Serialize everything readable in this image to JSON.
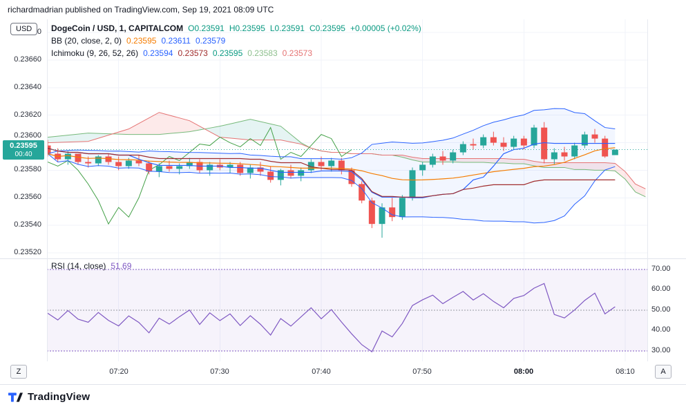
{
  "header": {
    "attribution": "richardmadrian published on TradingView.com, Sep 19, 2021 08:09 UTC"
  },
  "chart_controls": {
    "currency_button": "USD",
    "zoom_hint_left": "Z",
    "zoom_hint_right": "A"
  },
  "legend": {
    "symbol_row": {
      "title": "DogeCoin / USD, 1, CAPITALCOM",
      "open": "O0.23591",
      "high": "H0.23595",
      "low": "L0.23591",
      "close": "C0.23595",
      "change": "+0.00005 (+0.02%)"
    },
    "bb_row": {
      "title": "BB (20, close, 2, 0)",
      "values": [
        "0.23595",
        "0.23611",
        "0.23579"
      ]
    },
    "ichimoku_row": {
      "title": "Ichimoku (9, 26, 52, 26)",
      "values": [
        "0.23594",
        "0.23573",
        "0.23595",
        "0.23583",
        "0.23573"
      ]
    },
    "rsi_row": {
      "title": "RSI (14, close)",
      "value": "51.69"
    }
  },
  "price_axis": {
    "labels": [
      "0.23680",
      "0.23660",
      "0.23640",
      "0.23620",
      "0.23600",
      "0.23580",
      "0.23560",
      "0.23540",
      "0.23520"
    ],
    "last_price_badge": {
      "price": "0.23595",
      "countdown": "00:40",
      "color": "#26a69a"
    }
  },
  "rsi_axis": {
    "labels": [
      "70.00",
      "60.00",
      "50.00",
      "40.00",
      "30.00"
    ]
  },
  "time_axis": {
    "labels": [
      "07:20",
      "07:30",
      "07:40",
      "07:50",
      "08:00",
      "08:10"
    ]
  },
  "footer": {
    "brand": "TradingView",
    "logo_icon": "tradingview-logo"
  },
  "chart_data": {
    "type": "candlestick",
    "symbol": "DogeCoin / USD",
    "exchange": "CAPITALCOM",
    "interval": "1 minute",
    "start_time": "07:13",
    "end_time": "08:09",
    "last_price": 0.23595,
    "grid_prices": [
      0.2368,
      0.2366,
      0.2364,
      0.2362,
      0.236,
      0.2358,
      0.2356,
      0.2354,
      0.2352
    ],
    "tick_indices": [
      7,
      17,
      27,
      37,
      47,
      57
    ],
    "ohlc": [
      [
        0.23598,
        0.23602,
        0.2359,
        0.23592
      ],
      [
        0.23592,
        0.23596,
        0.23586,
        0.23588
      ],
      [
        0.23588,
        0.23594,
        0.23584,
        0.23592
      ],
      [
        0.23592,
        0.23592,
        0.23584,
        0.23586
      ],
      [
        0.23586,
        0.2359,
        0.23582,
        0.23585
      ],
      [
        0.23585,
        0.23591,
        0.23583,
        0.2359
      ],
      [
        0.2359,
        0.23592,
        0.23584,
        0.23586
      ],
      [
        0.23586,
        0.2359,
        0.2358,
        0.23583
      ],
      [
        0.23583,
        0.23589,
        0.23581,
        0.23587
      ],
      [
        0.23587,
        0.23591,
        0.23583,
        0.23585
      ],
      [
        0.23585,
        0.23587,
        0.23577,
        0.23579
      ],
      [
        0.23579,
        0.23585,
        0.23575,
        0.23583
      ],
      [
        0.23583,
        0.23587,
        0.23579,
        0.23581
      ],
      [
        0.23581,
        0.23585,
        0.23577,
        0.23583
      ],
      [
        0.23583,
        0.23589,
        0.23581,
        0.23586
      ],
      [
        0.23586,
        0.23588,
        0.23578,
        0.2358
      ],
      [
        0.2358,
        0.23586,
        0.23576,
        0.23584
      ],
      [
        0.23584,
        0.23588,
        0.2358,
        0.23582
      ],
      [
        0.23582,
        0.23586,
        0.23578,
        0.23584
      ],
      [
        0.23584,
        0.23586,
        0.23576,
        0.23578
      ],
      [
        0.23578,
        0.23584,
        0.23574,
        0.23582
      ],
      [
        0.23582,
        0.23586,
        0.23576,
        0.23579
      ],
      [
        0.23579,
        0.23583,
        0.23571,
        0.23573
      ],
      [
        0.23573,
        0.23581,
        0.23569,
        0.2358
      ],
      [
        0.2358,
        0.23584,
        0.23574,
        0.23576
      ],
      [
        0.23576,
        0.23582,
        0.23572,
        0.2358
      ],
      [
        0.2358,
        0.23588,
        0.23578,
        0.23586
      ],
      [
        0.23586,
        0.2359,
        0.2358,
        0.23583
      ],
      [
        0.23583,
        0.23589,
        0.23579,
        0.23587
      ],
      [
        0.23587,
        0.23589,
        0.23577,
        0.2358
      ],
      [
        0.2358,
        0.23582,
        0.23568,
        0.2357
      ],
      [
        0.2357,
        0.23572,
        0.23556,
        0.23558
      ],
      [
        0.23558,
        0.2356,
        0.23538,
        0.23541
      ],
      [
        0.23541,
        0.23556,
        0.23531,
        0.23553
      ],
      [
        0.23553,
        0.2356,
        0.23543,
        0.23546
      ],
      [
        0.23546,
        0.23562,
        0.23544,
        0.2356
      ],
      [
        0.2356,
        0.23582,
        0.23558,
        0.2358
      ],
      [
        0.2358,
        0.23586,
        0.23576,
        0.23584
      ],
      [
        0.23584,
        0.23592,
        0.23582,
        0.2359
      ],
      [
        0.2359,
        0.23594,
        0.23584,
        0.23587
      ],
      [
        0.23587,
        0.23595,
        0.23585,
        0.23593
      ],
      [
        0.23593,
        0.23601,
        0.23591,
        0.23599
      ],
      [
        0.23599,
        0.23603,
        0.23595,
        0.23598
      ],
      [
        0.23598,
        0.23606,
        0.23596,
        0.23604
      ],
      [
        0.23604,
        0.23608,
        0.23598,
        0.236
      ],
      [
        0.236,
        0.23604,
        0.23594,
        0.23597
      ],
      [
        0.23597,
        0.23605,
        0.23595,
        0.23603
      ],
      [
        0.23603,
        0.23605,
        0.23595,
        0.23598
      ],
      [
        0.23598,
        0.23613,
        0.23596,
        0.23611
      ],
      [
        0.23611,
        0.23615,
        0.23585,
        0.23588
      ],
      [
        0.23588,
        0.23596,
        0.23584,
        0.23593
      ],
      [
        0.23593,
        0.23597,
        0.23587,
        0.2359
      ],
      [
        0.2359,
        0.236,
        0.23588,
        0.23598
      ],
      [
        0.23598,
        0.23608,
        0.23596,
        0.23606
      ],
      [
        0.23606,
        0.2361,
        0.236,
        0.23603
      ],
      [
        0.23603,
        0.23605,
        0.23589,
        0.2359
      ],
      [
        0.23591,
        0.23595,
        0.23591,
        0.23595
      ]
    ],
    "indicators": {
      "bollinger": {
        "period": 20,
        "stddev": 2,
        "last_values": [
          0.23595,
          0.23611,
          0.23579
        ]
      },
      "ichimoku": {
        "params": [
          9,
          26,
          52,
          26
        ],
        "last_values": [
          0.23594,
          0.23573,
          0.23595,
          0.23583,
          0.23573
        ],
        "lead_a": [
          [
            0,
            0.23604
          ],
          [
            4,
            0.23607
          ],
          [
            8,
            0.23606
          ],
          [
            11,
            0.23606
          ],
          [
            14,
            0.23608
          ],
          [
            17,
            0.23612
          ],
          [
            20,
            0.23617
          ],
          [
            23,
            0.23612
          ],
          [
            25,
            0.236
          ]
        ],
        "lead_b": [
          [
            0,
            0.236
          ],
          [
            4,
            0.23601
          ],
          [
            8,
            0.2361
          ],
          [
            11,
            0.23622
          ],
          [
            14,
            0.23616
          ],
          [
            17,
            0.23604
          ],
          [
            20,
            0.23602
          ],
          [
            23,
            0.23602
          ],
          [
            25,
            0.23599
          ]
        ]
      },
      "rsi": {
        "period": 14,
        "last": 51.69,
        "levels": [
          70,
          50,
          30
        ],
        "range": [
          25,
          75
        ],
        "values": [
          48.5,
          45.2,
          49.8,
          45.6,
          44.1,
          48.9,
          45.0,
          42.3,
          47.2,
          44.0,
          38.9,
          46.1,
          43.2,
          46.8,
          50.1,
          43.0,
          48.7,
          44.9,
          48.2,
          42.5,
          47.3,
          43.1,
          37.8,
          45.9,
          42.2,
          46.7,
          51.2,
          45.8,
          50.3,
          44.2,
          38.4,
          33.1,
          29.6,
          39.8,
          36.9,
          43.5,
          52.3,
          55.1,
          57.4,
          53.2,
          56.3,
          59.2,
          55.0,
          58.1,
          54.3,
          51.2,
          55.8,
          57.2,
          60.8,
          63.1,
          47.9,
          46.2,
          50.1,
          54.8,
          58.4,
          48.2,
          51.69
        ]
      }
    },
    "colors": {
      "up": "#26a69a",
      "down": "#ef5350",
      "bb": "#2962ff",
      "bb_basis": "#f57c00",
      "bb_fill": "rgba(41,98,255,0.06)",
      "tenkan": "#2962ff",
      "kijun": "#a02c2c",
      "chikou": "#43a047",
      "span_a": "#76b97a",
      "span_b": "#e57373",
      "cloud_up": "rgba(38,166,154,0.12)",
      "cloud_down": "rgba(239,83,80,0.12)",
      "rsi": "#7e57c2",
      "rsi_fill": "rgba(126,87,194,0.07)",
      "level": "#7e57c2",
      "mid_level": "#9598a1",
      "grid": "#f0f3fa",
      "last_price_line": "#26a69a"
    }
  }
}
